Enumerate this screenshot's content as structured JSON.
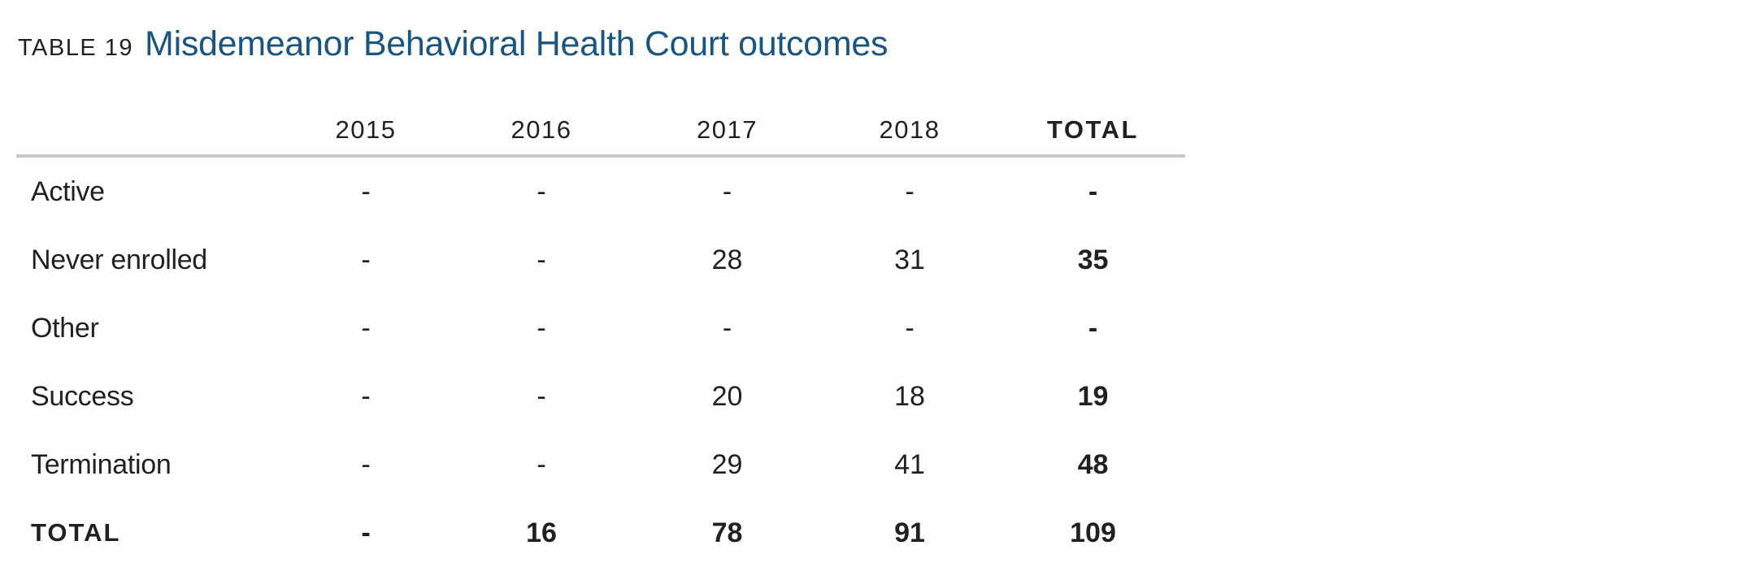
{
  "header": {
    "table_label": "TABLE 19",
    "title": "Misdemeanor Behavioral Health Court outcomes"
  },
  "table": {
    "columns": [
      "",
      "2015",
      "2016",
      "2017",
      "2018",
      "TOTAL"
    ],
    "rows": [
      {
        "label": "Active",
        "cells": [
          "-",
          "-",
          "-",
          "-",
          "-"
        ]
      },
      {
        "label": "Never enrolled",
        "cells": [
          "-",
          "-",
          "28",
          "31",
          "35"
        ]
      },
      {
        "label": "Other",
        "cells": [
          "-",
          "-",
          "-",
          "-",
          "-"
        ]
      },
      {
        "label": "Success",
        "cells": [
          "-",
          "-",
          "20",
          "18",
          "19"
        ]
      },
      {
        "label": "Termination",
        "cells": [
          "-",
          "-",
          "29",
          "41",
          "48"
        ]
      },
      {
        "label": "TOTAL",
        "cells": [
          "-",
          "16",
          "78",
          "91",
          "109"
        ]
      }
    ]
  }
}
